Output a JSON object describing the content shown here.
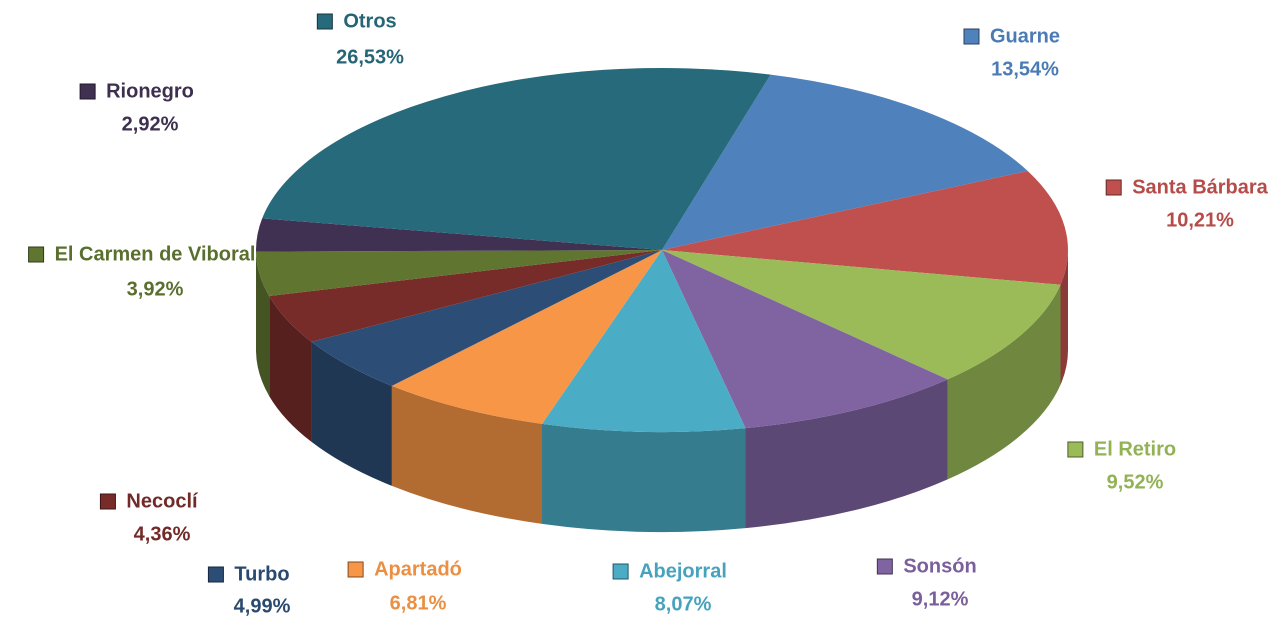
{
  "chart_data": {
    "type": "pie",
    "categories": [
      "Guarne",
      "Santa Bárbara",
      "El Retiro",
      "Sonsón",
      "Abejorral",
      "Apartadó",
      "Turbo",
      "Necoclí",
      "El Carmen de Viboral",
      "Rionegro",
      "Otros"
    ],
    "values": [
      13.54,
      10.21,
      9.52,
      9.12,
      8.07,
      6.81,
      4.99,
      4.36,
      3.92,
      2.92,
      26.53
    ],
    "value_labels": [
      "13,54%",
      "10,21%",
      "9,52%",
      "9,12%",
      "8,07%",
      "6,81%",
      "4,99%",
      "4,36%",
      "3,92%",
      "2,92%",
      "26,53%"
    ],
    "colors": [
      "#4f81bd",
      "#c0504d",
      "#9bbb59",
      "#8064a2",
      "#4bacc6",
      "#f79646",
      "#2c4d75",
      "#772c2a",
      "#5f7530",
      "#403152",
      "#276a7c"
    ]
  }
}
